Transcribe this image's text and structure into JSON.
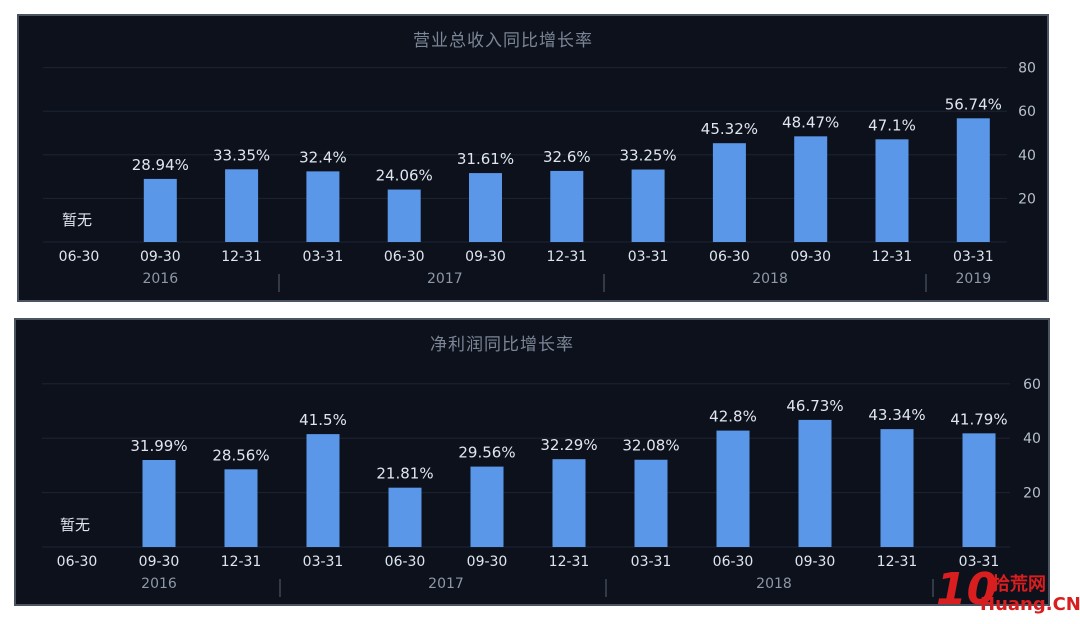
{
  "chart_data": [
    {
      "type": "bar",
      "title": "营业总收入同比增长率",
      "categories": [
        "06-30",
        "09-30",
        "12-31",
        "03-31",
        "06-30",
        "09-30",
        "12-31",
        "03-31",
        "06-30",
        "09-30",
        "12-31",
        "03-31"
      ],
      "values": [
        null,
        28.94,
        33.35,
        32.4,
        24.06,
        31.61,
        32.6,
        33.25,
        45.32,
        48.47,
        47.1,
        56.74
      ],
      "value_labels": [
        "暂无",
        "28.94%",
        "33.35%",
        "32.4%",
        "24.06%",
        "31.61%",
        "32.6%",
        "33.25%",
        "45.32%",
        "48.47%",
        "47.1%",
        "56.74%"
      ],
      "years": [
        {
          "label": "2016",
          "start": 0,
          "end": 2
        },
        {
          "label": "2017",
          "start": 3,
          "end": 6
        },
        {
          "label": "2018",
          "start": 7,
          "end": 10
        },
        {
          "label": "2019",
          "start": 11,
          "end": 11
        }
      ],
      "yticks": [
        20,
        40,
        60,
        80
      ],
      "ylim": [
        0,
        80
      ],
      "grid": true,
      "bar_color": "#5b97e8"
    },
    {
      "type": "bar",
      "title": "净利润同比增长率",
      "categories": [
        "06-30",
        "09-30",
        "12-31",
        "03-31",
        "06-30",
        "09-30",
        "12-31",
        "03-31",
        "06-30",
        "09-30",
        "12-31",
        "03-31"
      ],
      "values": [
        null,
        31.99,
        28.56,
        41.5,
        21.81,
        29.56,
        32.29,
        32.08,
        42.8,
        46.73,
        43.34,
        41.79
      ],
      "value_labels": [
        "暂无",
        "31.99%",
        "28.56%",
        "41.5%",
        "21.81%",
        "29.56%",
        "32.29%",
        "32.08%",
        "42.8%",
        "46.73%",
        "43.34%",
        "41.79%"
      ],
      "years": [
        {
          "label": "2016",
          "start": 0,
          "end": 2
        },
        {
          "label": "2017",
          "start": 3,
          "end": 6
        },
        {
          "label": "2018",
          "start": 7,
          "end": 10
        }
      ],
      "yticks": [
        20,
        40,
        60
      ],
      "ylim": [
        0,
        60
      ],
      "grid": true,
      "bar_color": "#5b97e8"
    }
  ],
  "watermark": {
    "number": "10",
    "top_text": "拾荒网",
    "bottom_text": "Huang.CN",
    "color": "#d81e1e"
  }
}
